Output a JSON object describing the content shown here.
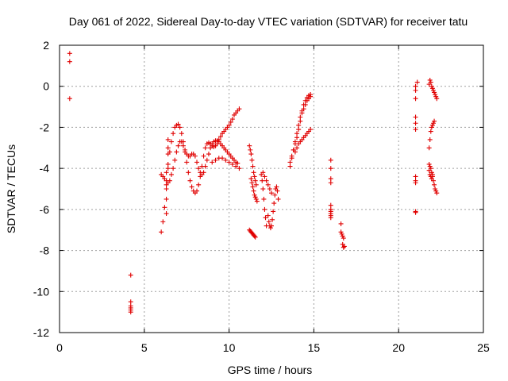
{
  "chart_data": {
    "type": "scatter",
    "title": "Day 061 of 2022, Sidereal Day-to-day VTEC variation (SDTVAR) for receiver tatu",
    "xlabel": "GPS time / hours",
    "ylabel": "SDTVAR / TECUs",
    "xlim": [
      0,
      25
    ],
    "ylim": [
      -12,
      2
    ],
    "xticks": [
      0,
      5,
      10,
      15,
      20,
      25
    ],
    "yticks": [
      -12,
      -10,
      -8,
      -6,
      -4,
      -2,
      0,
      2
    ],
    "grid": true,
    "marker": "+",
    "marker_color": "#e00000",
    "series": [
      {
        "name": "SDTVAR",
        "x": [
          0.6,
          0.6,
          0.6,
          4.2,
          4.2,
          4.2,
          4.2,
          4.2,
          4.2,
          6.0,
          6.1,
          6.2,
          6.3,
          6.4,
          6.5,
          6.6,
          6.7,
          6.8,
          6.9,
          7.0,
          7.1,
          7.2,
          7.3,
          7.4,
          7.5,
          7.6,
          7.7,
          7.8,
          7.9,
          8.0,
          8.1,
          8.2,
          8.3,
          8.4,
          8.5,
          8.6,
          8.7,
          8.8,
          8.9,
          9.0,
          9.1,
          9.2,
          9.3,
          9.4,
          9.5,
          9.6,
          9.7,
          9.8,
          9.9,
          10.0,
          10.1,
          10.2,
          10.3,
          10.4,
          10.5,
          10.6,
          6.0,
          6.1,
          6.2,
          6.3,
          6.4,
          6.5,
          6.6,
          6.7,
          6.8,
          6.9,
          7.0,
          7.1,
          7.2,
          7.3,
          7.4,
          7.5,
          7.6,
          7.7,
          7.8,
          7.9,
          8.0,
          8.1,
          8.2,
          8.3,
          8.4,
          8.5,
          8.6,
          8.7,
          8.8,
          8.9,
          9.0,
          9.1,
          9.2,
          9.3,
          9.4,
          9.5,
          9.6,
          9.7,
          9.8,
          9.9,
          10.0,
          10.1,
          10.2,
          10.3,
          10.4,
          10.5,
          6.3,
          6.3,
          6.3,
          6.3,
          6.4,
          6.4,
          6.4,
          6.4,
          9.0,
          9.2,
          9.4,
          9.6,
          9.8,
          10.0,
          10.2,
          10.4,
          10.6,
          11.2,
          11.25,
          11.3,
          11.35,
          11.4,
          11.45,
          11.5,
          11.55,
          11.6,
          11.3,
          11.35,
          11.4,
          11.45,
          11.5,
          11.55,
          11.6,
          11.65,
          11.2,
          11.25,
          11.3,
          11.35,
          11.4,
          11.45,
          11.5,
          11.55,
          11.9,
          11.95,
          12.0,
          12.05,
          12.1,
          12.15,
          12.2,
          12.0,
          12.1,
          12.2,
          12.3,
          12.4,
          12.5,
          12.3,
          12.35,
          12.4,
          12.45,
          12.5,
          12.55,
          12.6,
          12.65,
          12.7,
          12.75,
          12.8,
          12.85,
          12.9,
          13.6,
          13.7,
          13.8,
          13.9,
          14.0,
          14.1,
          14.2,
          14.3,
          14.4,
          14.5,
          14.6,
          14.7,
          14.8,
          13.6,
          13.7,
          13.8,
          13.9,
          14.0,
          14.1,
          14.2,
          14.3,
          14.4,
          14.5,
          14.6,
          14.7,
          14.8,
          13.9,
          14.0,
          14.1,
          14.2,
          14.3,
          14.4,
          14.5,
          14.6,
          14.7,
          14.8,
          16.0,
          16.0,
          16.0,
          16.0,
          16.0,
          16.0,
          16.0,
          16.0,
          16.0,
          16.0,
          16.6,
          16.6,
          16.65,
          16.7,
          16.75,
          16.8,
          16.7,
          16.75,
          21.0,
          21.0,
          21.0,
          21.0,
          21.0,
          21.0,
          21.0,
          21.0,
          21.0,
          21.0,
          21.1,
          21.0,
          21.8,
          21.85,
          21.9,
          21.95,
          22.0,
          22.05,
          22.1,
          22.15,
          22.2,
          22.25,
          21.8,
          21.85,
          21.9,
          21.95,
          22.0,
          22.05,
          22.1,
          21.8,
          21.85,
          21.9,
          21.95,
          22.0,
          22.05,
          22.1,
          22.15,
          22.2,
          22.25,
          21.8,
          21.85,
          21.9,
          21.95,
          22.0
        ],
        "y": [
          1.6,
          1.2,
          -0.6,
          -9.2,
          -10.5,
          -10.7,
          -10.8,
          -10.9,
          -11.0,
          -7.1,
          -6.6,
          -5.9,
          -5.0,
          -4.0,
          -3.2,
          -2.7,
          -2.3,
          -2.0,
          -1.9,
          -1.85,
          -2.0,
          -2.3,
          -2.7,
          -3.2,
          -3.7,
          -4.2,
          -4.6,
          -4.9,
          -5.1,
          -5.2,
          -5.1,
          -4.8,
          -4.4,
          -3.9,
          -3.4,
          -3.0,
          -2.8,
          -2.75,
          -2.8,
          -2.9,
          -2.95,
          -2.9,
          -2.8,
          -2.6,
          -2.45,
          -2.3,
          -2.2,
          -2.1,
          -2.0,
          -1.9,
          -1.75,
          -1.6,
          -1.4,
          -1.3,
          -1.2,
          -1.1,
          -4.3,
          -4.4,
          -4.5,
          -4.6,
          -4.7,
          -4.6,
          -4.3,
          -4.0,
          -3.6,
          -3.2,
          -2.9,
          -2.7,
          -2.7,
          -2.9,
          -3.1,
          -3.3,
          -3.4,
          -3.4,
          -3.3,
          -3.3,
          -3.4,
          -3.7,
          -4.0,
          -4.2,
          -4.3,
          -4.2,
          -3.9,
          -3.6,
          -3.3,
          -3.0,
          -2.8,
          -2.7,
          -2.65,
          -2.65,
          -2.7,
          -2.8,
          -2.9,
          -3.0,
          -3.1,
          -3.2,
          -3.3,
          -3.4,
          -3.5,
          -3.6,
          -3.7,
          -3.75,
          -4.2,
          -4.8,
          -5.5,
          -6.2,
          -3.8,
          -3.3,
          -3.0,
          -2.6,
          -3.7,
          -3.6,
          -3.5,
          -3.5,
          -3.6,
          -3.7,
          -3.8,
          -3.9,
          -4.0,
          -2.9,
          -3.1,
          -3.3,
          -3.6,
          -3.9,
          -4.2,
          -4.4,
          -4.6,
          -4.8,
          -4.5,
          -4.7,
          -4.9,
          -5.1,
          -5.3,
          -5.4,
          -5.5,
          -5.6,
          -7.0,
          -7.05,
          -7.1,
          -7.15,
          -7.2,
          -7.25,
          -7.3,
          -7.35,
          -4.3,
          -4.6,
          -5.0,
          -5.5,
          -6.0,
          -6.4,
          -6.8,
          -4.2,
          -4.4,
          -4.6,
          -4.8,
          -5.0,
          -5.2,
          -6.3,
          -6.6,
          -6.8,
          -6.9,
          -6.8,
          -6.5,
          -6.1,
          -5.7,
          -5.3,
          -5.0,
          -4.9,
          -5.1,
          -5.5,
          -3.9,
          -3.5,
          -3.1,
          -2.7,
          -2.3,
          -1.9,
          -1.5,
          -1.2,
          -0.9,
          -0.7,
          -0.55,
          -0.45,
          -0.4,
          -3.7,
          -3.4,
          -3.1,
          -2.8,
          -2.5,
          -2.1,
          -1.7,
          -1.3,
          -1.1,
          -0.9,
          -0.7,
          -0.6,
          -0.5,
          -3.2,
          -3.0,
          -2.8,
          -2.7,
          -2.6,
          -2.5,
          -2.4,
          -2.3,
          -2.2,
          -2.1,
          -3.6,
          -4.0,
          -4.5,
          -4.7,
          -5.8,
          -6.0,
          -6.1,
          -6.2,
          -6.3,
          -6.4,
          -6.7,
          -7.1,
          -7.2,
          -7.3,
          -7.4,
          -7.8,
          -7.7,
          -7.85,
          -6.1,
          -4.6,
          -4.4,
          -4.7,
          -1.5,
          -1.8,
          -2.1,
          -0.6,
          -0.2,
          0.0,
          0.2,
          -6.15,
          0.1,
          0.3,
          0.2,
          0.0,
          -0.1,
          -0.2,
          -0.3,
          -0.4,
          -0.5,
          -0.6,
          -3.0,
          -2.6,
          -2.2,
          -2.0,
          -1.9,
          -1.8,
          -1.7,
          -3.8,
          -3.9,
          -4.0,
          -4.2,
          -4.4,
          -4.6,
          -4.8,
          -5.0,
          -5.1,
          -5.2,
          -4.1,
          -4.3,
          -4.4,
          -4.5,
          -4.3
        ]
      }
    ]
  }
}
